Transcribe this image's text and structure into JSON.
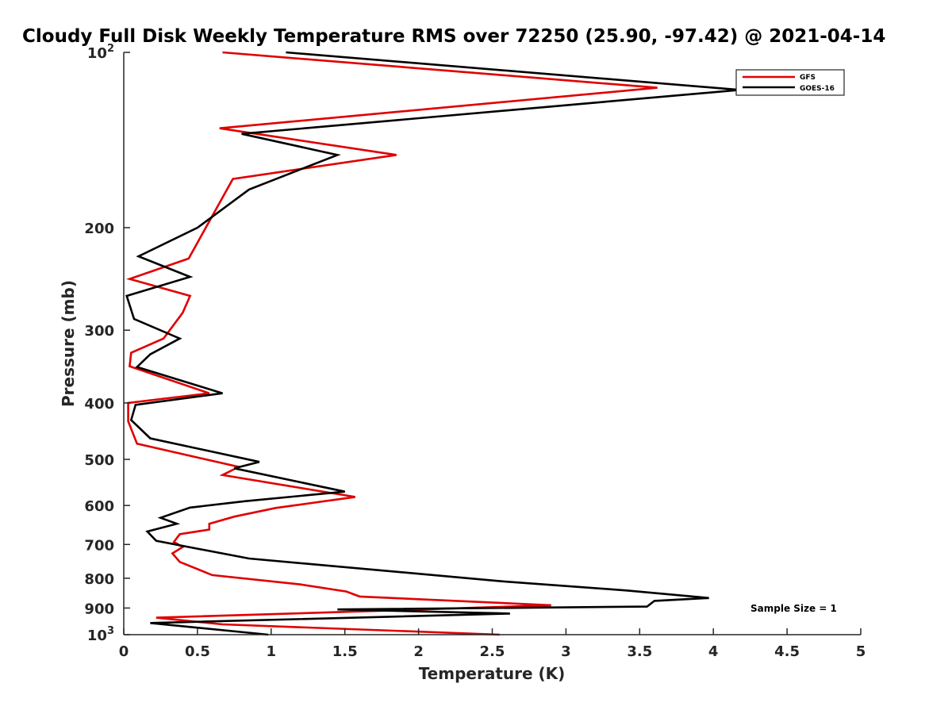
{
  "chart_data": {
    "type": "line",
    "title": "Cloudy Full Disk Weekly Temperature RMS over 72250 (25.90, -97.42) @ 2021-04-14",
    "xlabel": "Temperature (K)",
    "ylabel": "Pressure (mb)",
    "xlim": [
      0,
      5
    ],
    "ylim": [
      100,
      1000
    ],
    "y_scale": "log",
    "y_reversed": true,
    "grid": false,
    "legend_position": "top-right",
    "x_ticks": [
      {
        "value": 0,
        "label": "0"
      },
      {
        "value": 0.5,
        "label": "0.5"
      },
      {
        "value": 1,
        "label": "1"
      },
      {
        "value": 1.5,
        "label": "1.5"
      },
      {
        "value": 2,
        "label": "2"
      },
      {
        "value": 2.5,
        "label": "2.5"
      },
      {
        "value": 3,
        "label": "3"
      },
      {
        "value": 3.5,
        "label": "3.5"
      },
      {
        "value": 4,
        "label": "4"
      },
      {
        "value": 4.5,
        "label": "4.5"
      },
      {
        "value": 5,
        "label": "5"
      }
    ],
    "y_ticks": [
      {
        "value": 100,
        "base": "10",
        "exp": "2"
      },
      {
        "value": 200,
        "base": "200",
        "exp": ""
      },
      {
        "value": 300,
        "base": "300",
        "exp": ""
      },
      {
        "value": 400,
        "base": "400",
        "exp": ""
      },
      {
        "value": 500,
        "base": "500",
        "exp": ""
      },
      {
        "value": 600,
        "base": "600",
        "exp": ""
      },
      {
        "value": 700,
        "base": "700",
        "exp": ""
      },
      {
        "value": 800,
        "base": "800",
        "exp": ""
      },
      {
        "value": 900,
        "base": "900",
        "exp": ""
      },
      {
        "value": 1000,
        "base": "10",
        "exp": "3"
      }
    ],
    "series": [
      {
        "name": "GFS",
        "color": "#e00000",
        "points": [
          [
            0.67,
            100
          ],
          [
            3.62,
            115
          ],
          [
            0.65,
            135
          ],
          [
            1.85,
            150
          ],
          [
            0.74,
            165
          ],
          [
            0.44,
            226
          ],
          [
            0.04,
            245
          ],
          [
            0.45,
            262
          ],
          [
            0.4,
            280
          ],
          [
            0.27,
            310
          ],
          [
            0.05,
            328
          ],
          [
            0.04,
            346
          ],
          [
            0.58,
            385
          ],
          [
            0.03,
            400
          ],
          [
            0.03,
            430
          ],
          [
            0.09,
            470
          ],
          [
            0.78,
            515
          ],
          [
            0.67,
            532
          ],
          [
            1.57,
            580
          ],
          [
            1.03,
            606
          ],
          [
            0.75,
            627
          ],
          [
            0.58,
            645
          ],
          [
            0.58,
            660
          ],
          [
            0.38,
            672
          ],
          [
            0.34,
            693
          ],
          [
            0.4,
            707
          ],
          [
            0.33,
            725
          ],
          [
            0.38,
            750
          ],
          [
            0.6,
            790
          ],
          [
            1.2,
            820
          ],
          [
            1.51,
            843
          ],
          [
            1.6,
            860
          ],
          [
            2.9,
            890
          ],
          [
            1.43,
            915
          ],
          [
            0.22,
            935
          ],
          [
            0.67,
            960
          ],
          [
            2.55,
            1000
          ]
        ]
      },
      {
        "name": "GOES-16",
        "color": "#000000",
        "points": [
          [
            1.1,
            100
          ],
          [
            4.18,
            116
          ],
          [
            0.8,
            138
          ],
          [
            1.45,
            150
          ],
          [
            0.85,
            172
          ],
          [
            0.5,
            200
          ],
          [
            0.1,
            224
          ],
          [
            0.45,
            243
          ],
          [
            0.02,
            262
          ],
          [
            0.07,
            287
          ],
          [
            0.38,
            310
          ],
          [
            0.18,
            330
          ],
          [
            0.09,
            347
          ],
          [
            0.67,
            385
          ],
          [
            0.08,
            403
          ],
          [
            0.05,
            428
          ],
          [
            0.18,
            460
          ],
          [
            0.92,
            505
          ],
          [
            0.75,
            518
          ],
          [
            1.5,
            568
          ],
          [
            0.82,
            590
          ],
          [
            0.45,
            605
          ],
          [
            0.25,
            630
          ],
          [
            0.36,
            645
          ],
          [
            0.16,
            665
          ],
          [
            0.22,
            690
          ],
          [
            0.85,
            740
          ],
          [
            2.57,
            810
          ],
          [
            3.42,
            840
          ],
          [
            3.97,
            865
          ],
          [
            3.6,
            875
          ],
          [
            3.55,
            895
          ],
          [
            1.45,
            905
          ],
          [
            2.62,
            920
          ],
          [
            0.18,
            955
          ],
          [
            0.98,
            1000
          ]
        ]
      }
    ],
    "annotation": "Sample Size = 1"
  }
}
